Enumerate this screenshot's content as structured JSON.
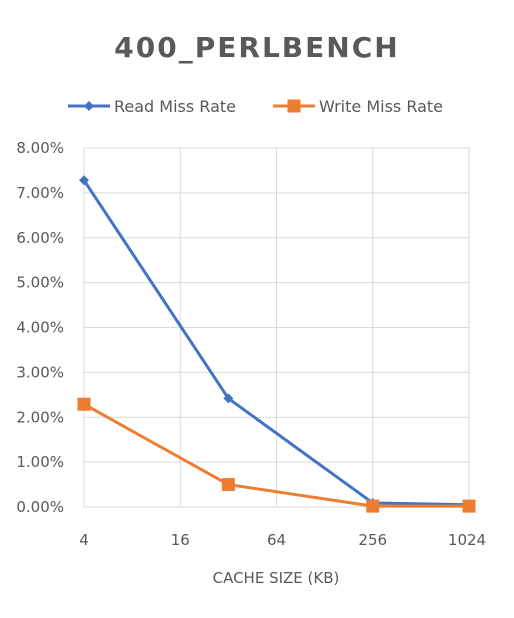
{
  "chart_data": {
    "type": "line",
    "title": "400_PERLBENCH",
    "xlabel": "CACHE SIZE (KB)",
    "ylabel": "",
    "x_scale": "log2",
    "x_ticks": [
      4,
      16,
      64,
      256,
      1024
    ],
    "x_tick_labels": [
      "4",
      "16",
      "64",
      "256",
      "1024"
    ],
    "xlim": [
      4,
      1024
    ],
    "ylim": [
      0,
      0.08
    ],
    "y_ticks": [
      0,
      0.01,
      0.02,
      0.03,
      0.04,
      0.05,
      0.06,
      0.07,
      0.08
    ],
    "y_tick_labels": [
      "0.00%",
      "1.00%",
      "2.00%",
      "3.00%",
      "4.00%",
      "5.00%",
      "6.00%",
      "7.00%",
      "8.00%"
    ],
    "grid": true,
    "legend_position": "top",
    "series": [
      {
        "name": "Read Miss Rate",
        "color": "#4472C4",
        "marker": "diamond",
        "x": [
          4,
          32,
          256,
          1024
        ],
        "values": [
          0.0728,
          0.0242,
          0.0009,
          0.0005
        ]
      },
      {
        "name": "Write Miss Rate",
        "color": "#ED7D31",
        "marker": "square",
        "x": [
          4,
          32,
          256,
          1024
        ],
        "values": [
          0.0229,
          0.005,
          0.0002,
          0.0002
        ]
      }
    ]
  }
}
